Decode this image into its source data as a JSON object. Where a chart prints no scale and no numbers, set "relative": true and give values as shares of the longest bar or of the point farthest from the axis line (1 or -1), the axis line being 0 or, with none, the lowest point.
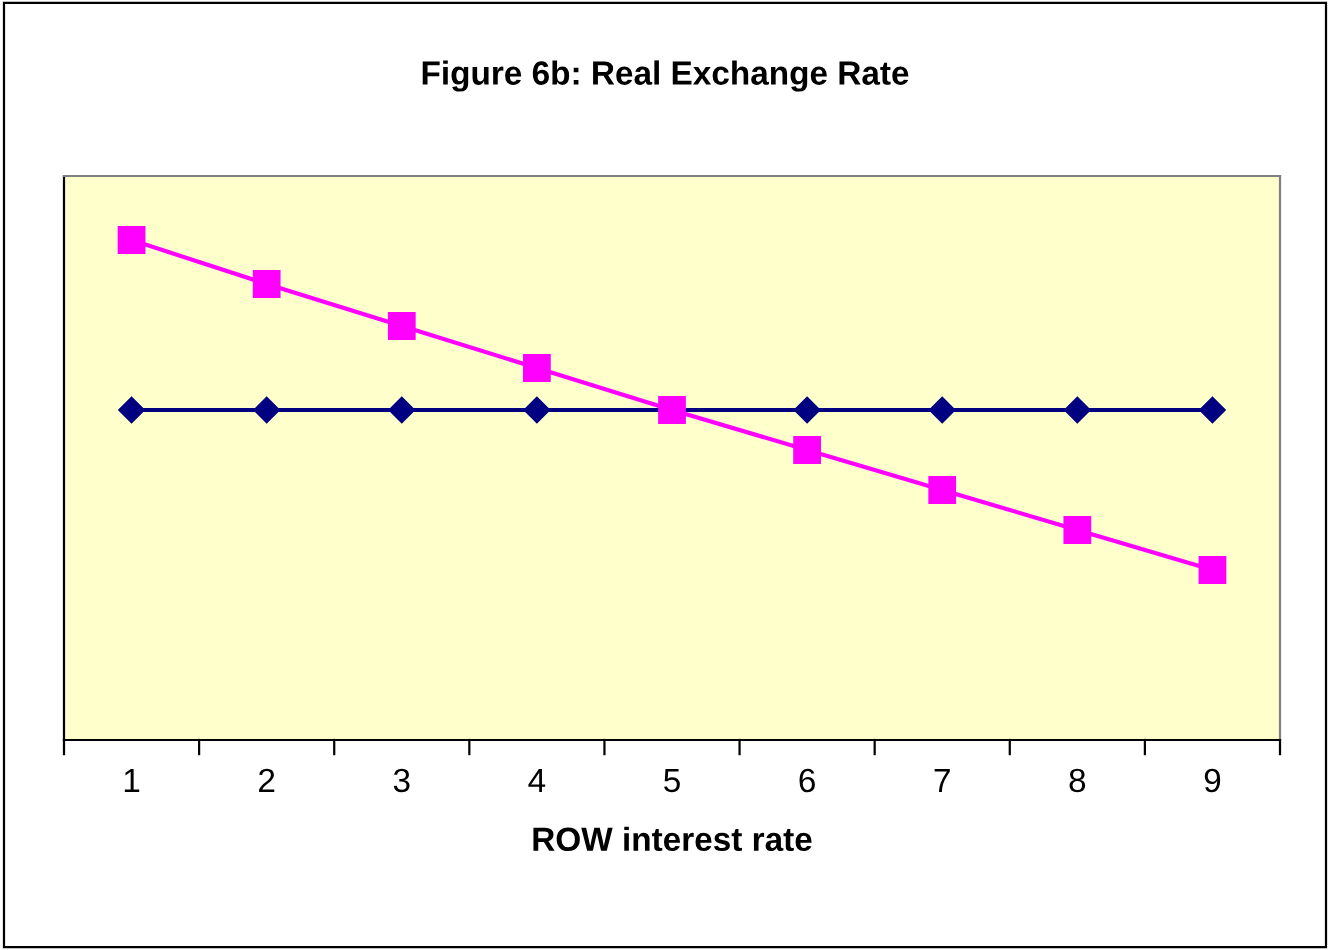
{
  "chart_data": {
    "type": "line",
    "title": "Figure 6b: Real Exchange Rate",
    "xlabel": "ROW interest rate",
    "categories": [
      "1",
      "2",
      "3",
      "4",
      "5",
      "6",
      "7",
      "8",
      "9"
    ],
    "relative": true,
    "grid": false,
    "series": [
      {
        "color": "#000080",
        "marker": "diamond",
        "values": [
          0.66,
          0.66,
          0.66,
          0.66,
          0.66,
          0.66,
          0.66,
          0.66,
          0.66
        ]
      },
      {
        "color": "#ff00ff",
        "marker": "square",
        "values": [
          1,
          0.912,
          0.828,
          0.744,
          0.66,
          0.58,
          0.5,
          0.42,
          0.34
        ]
      }
    ]
  }
}
